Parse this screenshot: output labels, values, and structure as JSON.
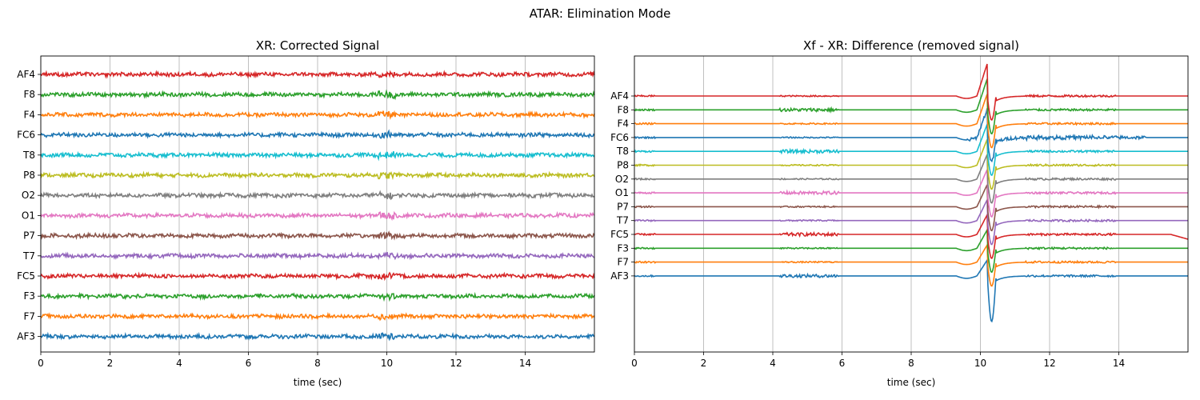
{
  "figure": {
    "title": "ATAR: Elimination Mode"
  },
  "colors": [
    "#1f77b4",
    "#ff7f0e",
    "#2ca02c",
    "#d62728",
    "#9467bd",
    "#8c564b",
    "#e377c2",
    "#7f7f7f",
    "#bcbd22",
    "#17becf"
  ],
  "chart_data": [
    {
      "type": "line",
      "title": "XR: Corrected Signal",
      "xlabel": "time (sec)",
      "ylabel": "",
      "xlim": [
        0,
        16
      ],
      "xticks": [
        0,
        2,
        4,
        6,
        8,
        10,
        12,
        14
      ],
      "grid": "vertical",
      "channels": [
        "AF3",
        "F7",
        "F3",
        "FC5",
        "T7",
        "P7",
        "O1",
        "O2",
        "P8",
        "T8",
        "FC6",
        "F4",
        "F8",
        "AF4"
      ],
      "channel_offset_step": 1,
      "series_description": "Cleaned EEG traces, one per channel, small-amplitude noise around each channel offset with mild bursts near t=10 s"
    },
    {
      "type": "line",
      "title": "Xf - XR: Difference (removed signal)",
      "xlabel": "time (sec)",
      "ylabel": "",
      "xlim": [
        0,
        16
      ],
      "xticks": [
        0,
        2,
        4,
        6,
        8,
        10,
        12,
        14
      ],
      "grid": "vertical",
      "channels": [
        "AF3",
        "F7",
        "F3",
        "FC5",
        "T7",
        "P7",
        "O1",
        "O2",
        "P8",
        "T8",
        "FC6",
        "F4",
        "F8",
        "AF4"
      ],
      "channel_offset_step": 1,
      "artifact_peak_time": 10.2,
      "series_description": "Removed artifact component per channel; mostly flat with bursts around 4-6 s, 9.5-12 s and a large blink spike near 10.2 s"
    }
  ]
}
